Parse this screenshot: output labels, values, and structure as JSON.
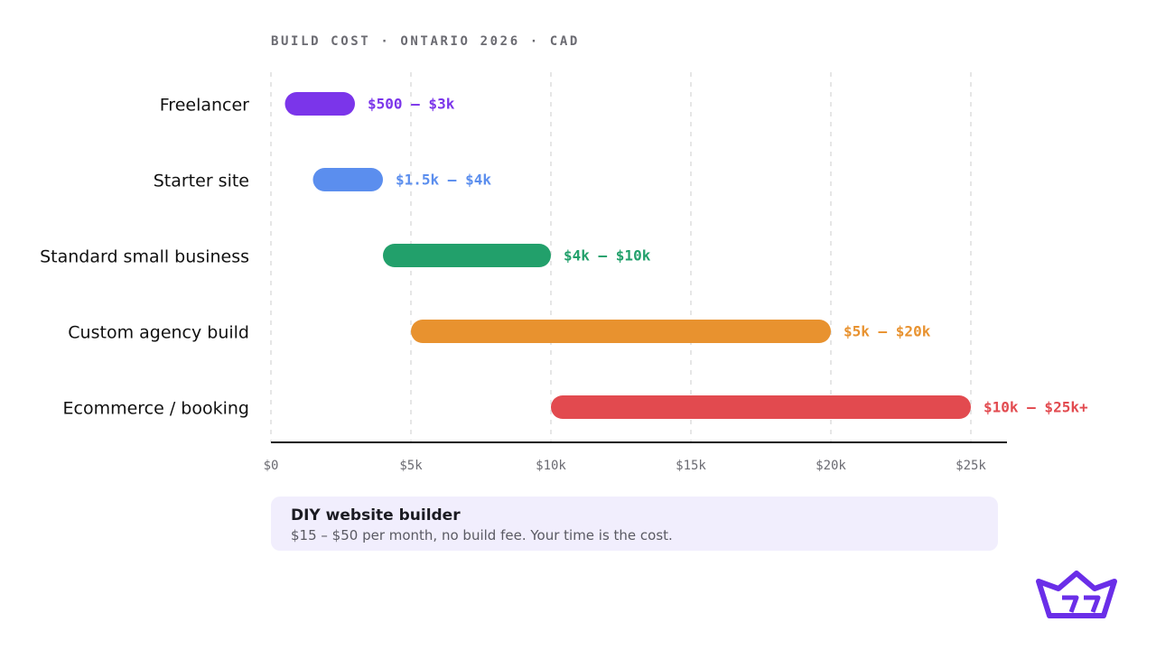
{
  "colors": {
    "freelancer": "#7b35ea",
    "starter": "#5b8eee",
    "standard": "#22a06b",
    "custom": "#e8922f",
    "ecommerce": "#e24a4f",
    "brand": "#6a2ee8",
    "note_bg": "#f1eefd"
  },
  "chart_data": {
    "type": "bar",
    "orientation": "horizontal-range",
    "title": "BUILD COST · ONTARIO 2026 · CAD",
    "xlim": [
      0,
      25000
    ],
    "grid": true,
    "x_ticks": [
      {
        "value": 0,
        "label": "$0"
      },
      {
        "value": 5000,
        "label": "$5k"
      },
      {
        "value": 10000,
        "label": "$10k"
      },
      {
        "value": 15000,
        "label": "$15k"
      },
      {
        "value": 20000,
        "label": "$20k"
      },
      {
        "value": 25000,
        "label": "$25k"
      }
    ],
    "categories": [
      "Freelancer",
      "Starter site",
      "Standard small business",
      "Custom agency build",
      "Ecommerce / booking"
    ],
    "ranges": [
      {
        "category": "Freelancer",
        "low": 500,
        "high": 3000,
        "label": "$500 – $3k",
        "color": "#7b35ea"
      },
      {
        "category": "Starter site",
        "low": 1500,
        "high": 4000,
        "label": "$1.5k – $4k",
        "color": "#5b8eee"
      },
      {
        "category": "Standard small business",
        "low": 4000,
        "high": 10000,
        "label": "$4k – $10k",
        "color": "#22a06b"
      },
      {
        "category": "Custom agency build",
        "low": 5000,
        "high": 20000,
        "label": "$5k – $20k",
        "color": "#e8922f"
      },
      {
        "category": "Ecommerce / booking",
        "low": 10000,
        "high": 25000,
        "label": "$10k – $25k+",
        "color": "#e24a4f"
      }
    ]
  },
  "note": {
    "title": "DIY website builder",
    "body": "$15 – $50 per month, no build fee. Your time is the cost."
  },
  "logo": {
    "icon": "crown-logo-icon"
  }
}
